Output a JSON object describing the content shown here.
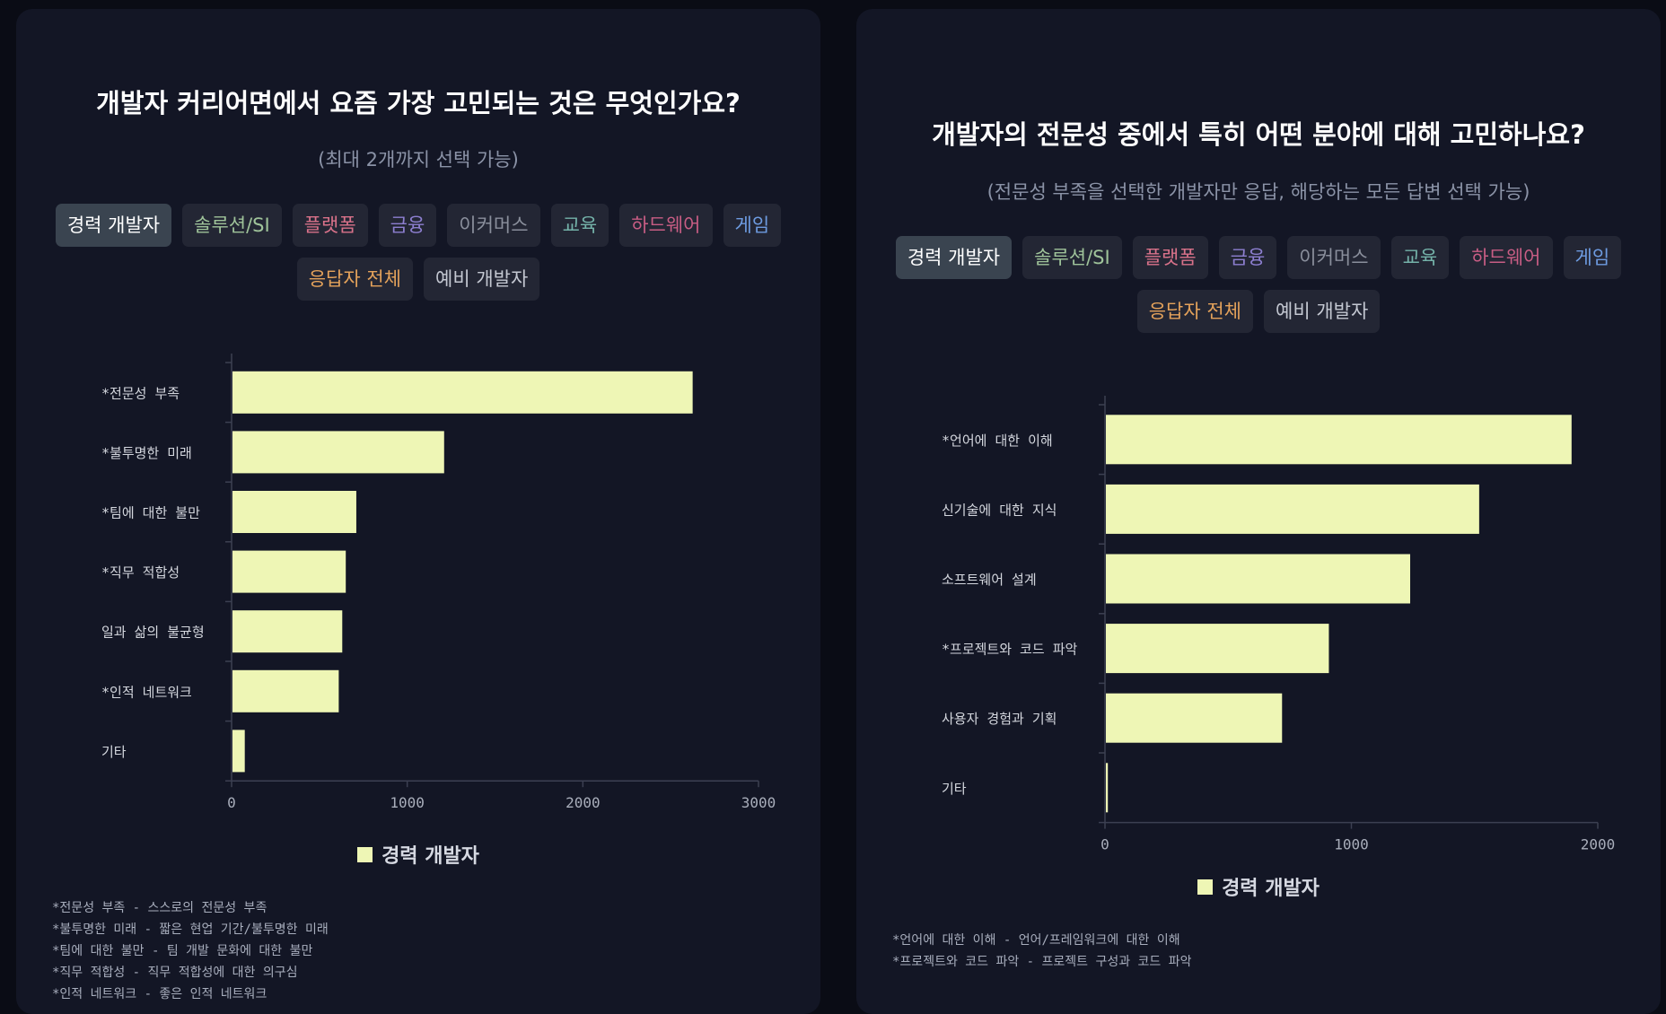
{
  "filters": [
    {
      "label": "경력 개발자",
      "color": "#ffffff",
      "active": true
    },
    {
      "label": "솔루션/SI",
      "color": "#9fc39a",
      "active": false
    },
    {
      "label": "플랫폼",
      "color": "#d9728a",
      "active": false
    },
    {
      "label": "금융",
      "color": "#8d7fd0",
      "active": false
    },
    {
      "label": "이커머스",
      "color": "#8a8f9c",
      "active": false
    },
    {
      "label": "교육",
      "color": "#74b2a9",
      "active": false
    },
    {
      "label": "하드웨어",
      "color": "#c85d84",
      "active": false
    },
    {
      "label": "게임",
      "color": "#6d9be0",
      "active": false
    },
    {
      "label": "응답자 전체",
      "color": "#e4a25b",
      "active": false
    },
    {
      "label": "예비 개발자",
      "color": "#c4c8d2",
      "active": false
    }
  ],
  "colors": {
    "bar": "#eef6b5",
    "axis": "#3c4052"
  },
  "panels": [
    {
      "title": "개발자 커리어면에서 요즘 가장 고민되는 것은 무엇인가요?",
      "subtitle": "(최대 2개까지 선택 가능)",
      "legend": "경력 개발자",
      "notes": [
        "*전문성 부족 - 스스로의 전문성 부족",
        "*불투명한 미래 - 짧은 현업 기간/불투명한 미래",
        "*팀에 대한 불만 - 팀 개발 문화에 대한 불만",
        "*직무 적합성 - 직무 적합성에 대한 의구심",
        "*인적 네트워크 - 좋은 인적 네트워크"
      ]
    },
    {
      "title": "개발자의 전문성 중에서 특히 어떤 분야에 대해 고민하나요?",
      "subtitle": "(전문성 부족을 선택한 개발자만 응답, 해당하는 모든 답변 선택 가능)",
      "legend": "경력 개발자",
      "notes": [
        "*언어에 대한 이해 - 언어/프레임워크에 대한 이해",
        "*프로젝트와 코드 파악 - 프로젝트 구성과 코드 파악"
      ]
    }
  ],
  "chart_data": [
    {
      "type": "bar",
      "orientation": "horizontal",
      "categories": [
        "*전문성 부족",
        "*불투명한 미래",
        "*팀에 대한 불만",
        "*직무 적합성",
        "일과 삶의 불균형",
        "*인적 네트워크",
        "기타"
      ],
      "series": [
        {
          "name": "경력 개발자",
          "values": [
            2620,
            1205,
            705,
            645,
            625,
            605,
            70
          ]
        }
      ],
      "xlim": [
        0,
        3000
      ],
      "xticks": [
        0,
        1000,
        2000,
        3000
      ],
      "legend": "bottom"
    },
    {
      "type": "bar",
      "orientation": "horizontal",
      "categories": [
        "*언어에 대한 이해",
        "신기술에 대한 지식",
        "소프트웨어 설계",
        "*프로젝트와 코드 파악",
        "사용자 경험과 기획",
        "기타"
      ],
      "series": [
        {
          "name": "경력 개발자",
          "values": [
            1890,
            1515,
            1235,
            905,
            715,
            8
          ]
        }
      ],
      "xlim": [
        0,
        2000
      ],
      "xticks": [
        0,
        1000,
        2000
      ],
      "legend": "bottom"
    }
  ]
}
